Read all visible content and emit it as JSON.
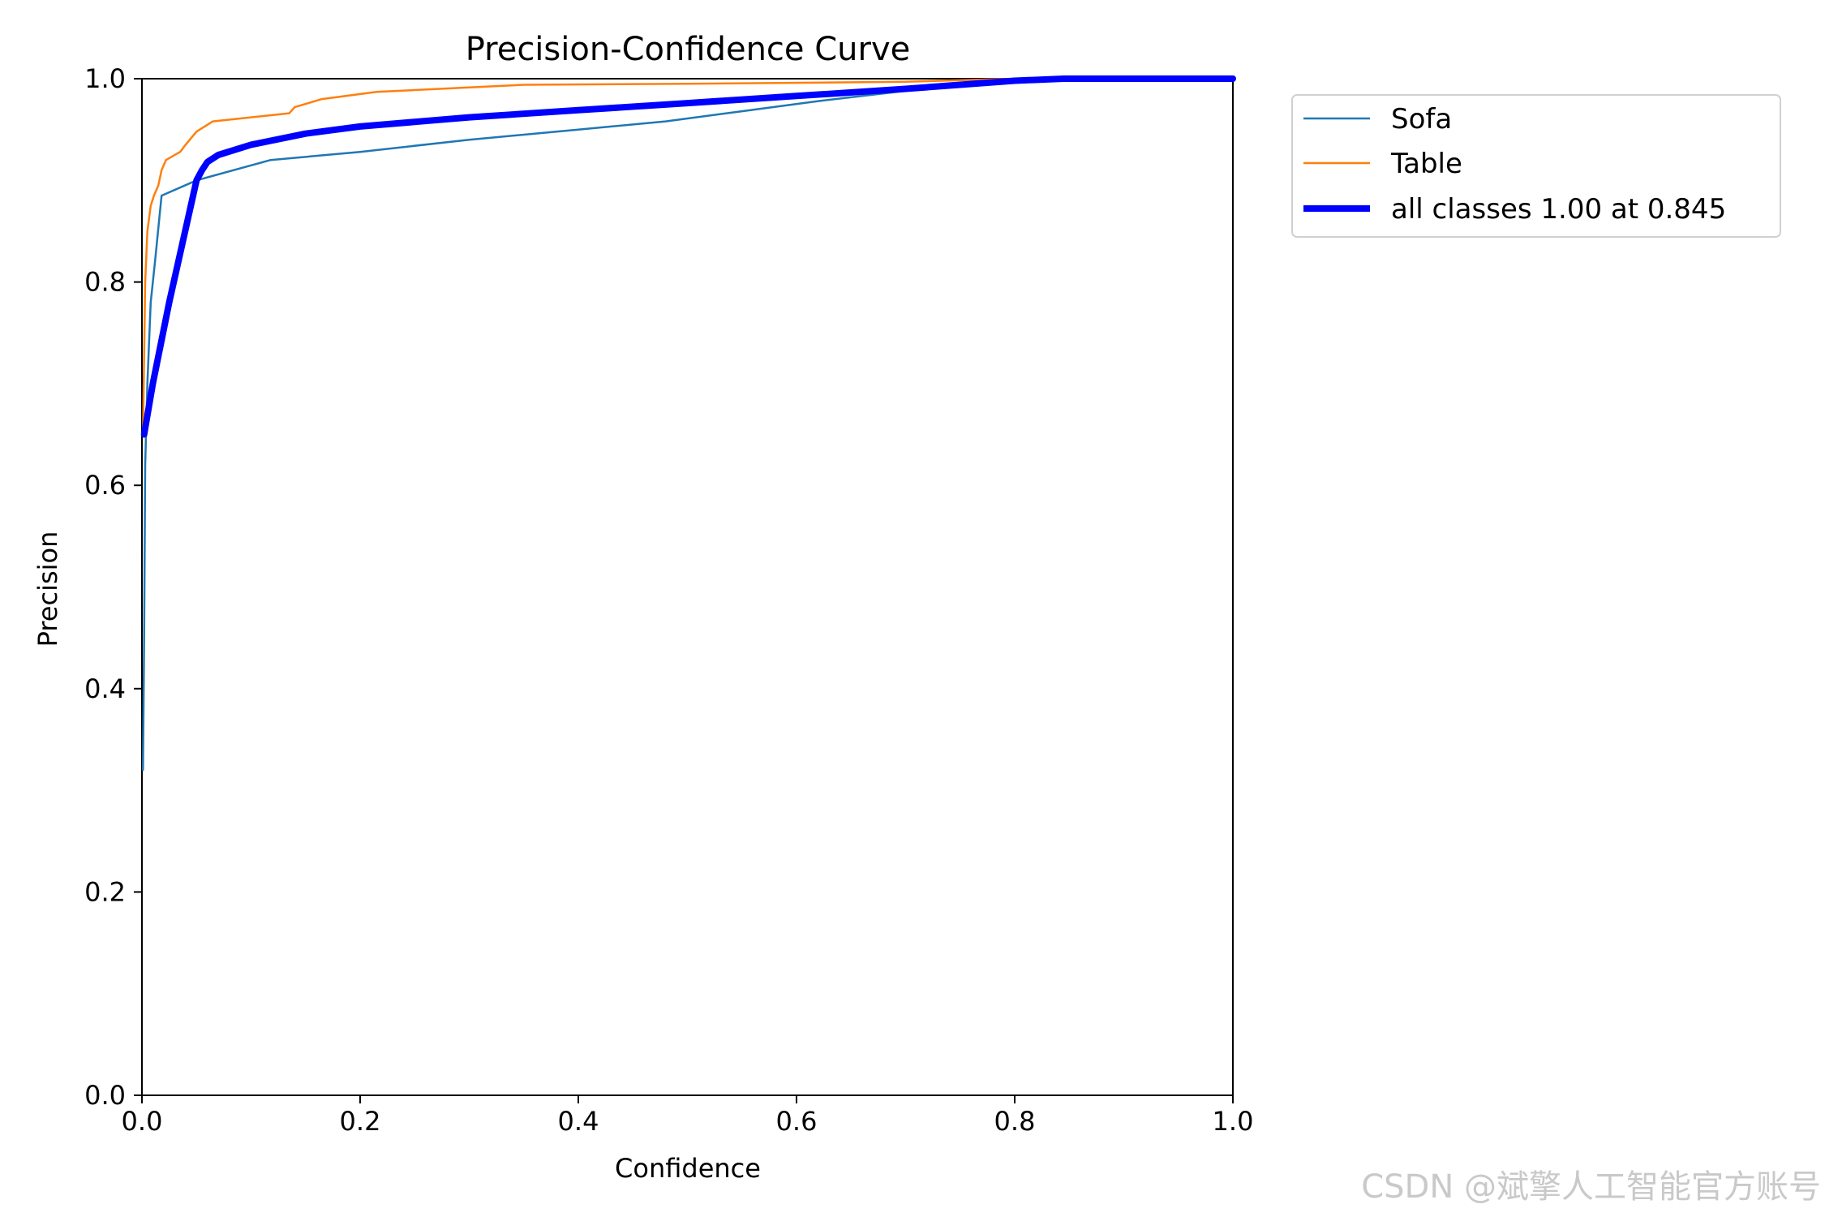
{
  "watermark": "CSDN @斌擎人工智能官方账号",
  "chart_data": {
    "type": "line",
    "title": "Precision-Confidence Curve",
    "xlabel": "Confidence",
    "ylabel": "Precision",
    "xlim": [
      0.0,
      1.0
    ],
    "ylim": [
      0.0,
      1.0
    ],
    "xticks": [
      "0.0",
      "0.2",
      "0.4",
      "0.6",
      "0.8",
      "1.0"
    ],
    "yticks": [
      "0.0",
      "0.2",
      "0.4",
      "0.6",
      "0.8",
      "1.0"
    ],
    "grid": false,
    "legend_position": "outside-top-right",
    "series": [
      {
        "name": "Sofa",
        "color": "#1f77b4",
        "x": [
          0.001,
          0.002,
          0.003,
          0.005,
          0.008,
          0.012,
          0.018,
          0.05,
          0.118,
          0.2,
          0.3,
          0.4,
          0.48,
          0.55,
          0.62,
          0.7,
          0.75,
          0.8,
          0.85,
          1.0
        ],
        "y": [
          0.32,
          0.45,
          0.62,
          0.7,
          0.78,
          0.82,
          0.885,
          0.9,
          0.92,
          0.928,
          0.94,
          0.95,
          0.958,
          0.968,
          0.978,
          0.988,
          0.995,
          1.0,
          1.0,
          1.0
        ]
      },
      {
        "name": "Table",
        "color": "#ff7f0e",
        "x": [
          0.001,
          0.003,
          0.005,
          0.008,
          0.011,
          0.015,
          0.018,
          0.022,
          0.035,
          0.04,
          0.05,
          0.065,
          0.1,
          0.135,
          0.14,
          0.165,
          0.215,
          0.35,
          0.5,
          0.7,
          0.8,
          1.0
        ],
        "y": [
          0.65,
          0.8,
          0.85,
          0.875,
          0.885,
          0.895,
          0.91,
          0.92,
          0.928,
          0.935,
          0.948,
          0.958,
          0.962,
          0.966,
          0.972,
          0.98,
          0.987,
          0.994,
          0.995,
          0.997,
          1.0,
          1.0
        ]
      },
      {
        "name": "all classes 1.00 at 0.845",
        "color": "#0000ff",
        "x": [
          0.002,
          0.01,
          0.025,
          0.05,
          0.055,
          0.06,
          0.07,
          0.1,
          0.15,
          0.2,
          0.3,
          0.4,
          0.5,
          0.6,
          0.7,
          0.8,
          0.845,
          1.0
        ],
        "y": [
          0.65,
          0.7,
          0.78,
          0.9,
          0.91,
          0.918,
          0.925,
          0.935,
          0.946,
          0.953,
          0.962,
          0.969,
          0.976,
          0.983,
          0.99,
          0.998,
          1.0,
          1.0
        ]
      }
    ]
  }
}
